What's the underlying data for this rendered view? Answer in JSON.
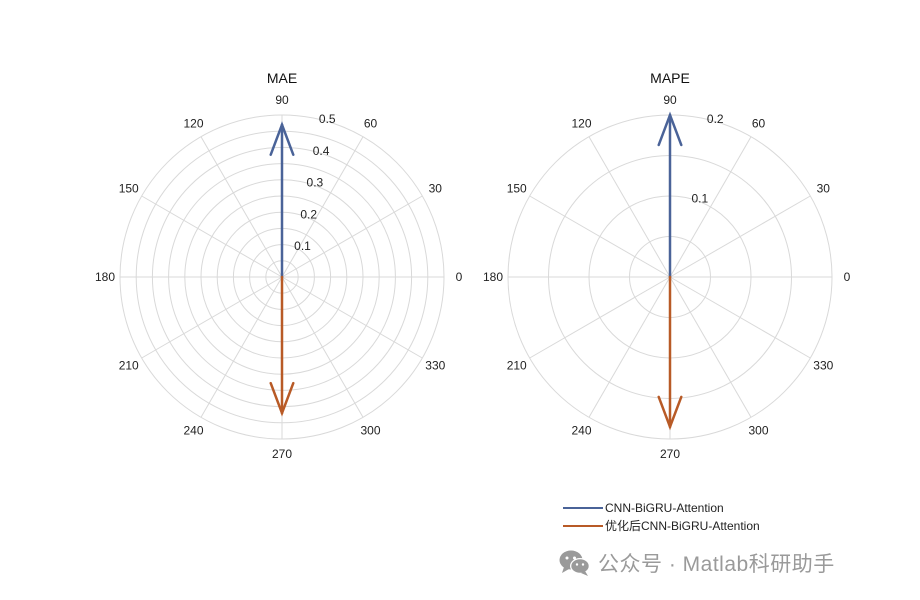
{
  "chart_data": [
    {
      "type": "polar",
      "title": "MAE",
      "theta_ticks": [
        "0",
        "30",
        "60",
        "90",
        "120",
        "150",
        "180",
        "210",
        "240",
        "270",
        "300",
        "330"
      ],
      "r_ticks": [
        "0.1",
        "0.2",
        "0.3",
        "0.4",
        "0.5"
      ],
      "rlim": [
        0,
        0.5
      ],
      "grid": true,
      "series": [
        {
          "theta_deg": 90,
          "r": 0.47
        },
        {
          "theta_deg": 270,
          "r": 0.42
        }
      ]
    },
    {
      "type": "polar",
      "title": "MAPE",
      "theta_ticks": [
        "0",
        "30",
        "60",
        "90",
        "120",
        "150",
        "180",
        "210",
        "240",
        "270",
        "300",
        "330"
      ],
      "r_ticks": [
        "0.1",
        "0.2"
      ],
      "rlim": [
        0,
        0.2
      ],
      "grid": true,
      "series": [
        {
          "theta_deg": 90,
          "r": 0.2
        },
        {
          "theta_deg": 270,
          "r": 0.185
        }
      ]
    }
  ],
  "legend": [
    {
      "label": "CNN-BiGRU-Attention",
      "color": "#4a6398"
    },
    {
      "label": "优化后CNN-BiGRU-Attention",
      "color": "#b85a26"
    }
  ],
  "colors": {
    "grid": "#d9d9d9",
    "series1": "#4a6398",
    "series2": "#b85a26"
  },
  "watermark": {
    "text": "公众号 · Matlab科研助手",
    "icon": "wechat-icon"
  }
}
